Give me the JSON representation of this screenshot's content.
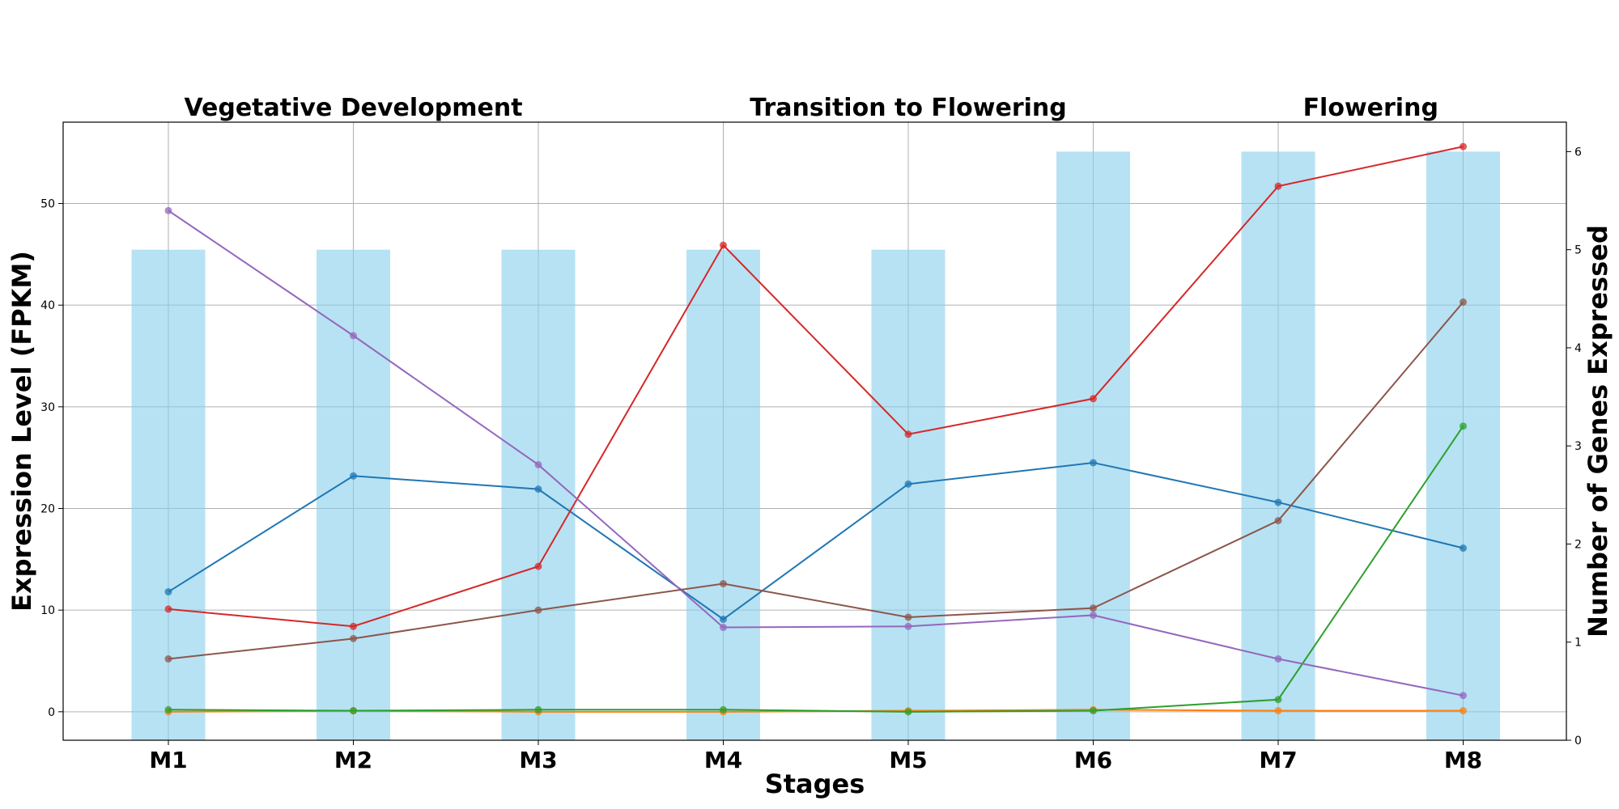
{
  "chart_data": {
    "type": "line",
    "categories": [
      "M1",
      "M2",
      "M3",
      "M4",
      "M5",
      "M6",
      "M7",
      "M8"
    ],
    "xlabel": "Stages",
    "ylabel": "Expression Level (FPKM)",
    "y2label": "Number of Genes Expressed",
    "ylim": [
      -2.8,
      58
    ],
    "y2lim": [
      0,
      6.3
    ],
    "yticks": [
      "0",
      "10",
      "20",
      "30",
      "40",
      "50"
    ],
    "y2ticks": [
      "0",
      "1",
      "2",
      "3",
      "4",
      "5",
      "6"
    ],
    "grid": true,
    "phases": [
      {
        "label": "Vegetative Development",
        "center_index": 1.0
      },
      {
        "label": "Transition to Flowering",
        "center_index": 4.0
      },
      {
        "label": "Flowering",
        "center_index": 6.5
      }
    ],
    "bars": {
      "color": "#87ceeb",
      "axis": "right",
      "values": [
        5,
        5,
        5,
        5,
        5,
        6,
        6,
        6
      ]
    },
    "series": [
      {
        "color": "#1f77b4",
        "values": [
          11.8,
          23.2,
          21.9,
          9.1,
          22.4,
          24.5,
          20.6,
          16.1
        ]
      },
      {
        "color": "#ff7f0e",
        "values": [
          0.0,
          0.1,
          0.0,
          0.0,
          0.1,
          0.2,
          0.1,
          0.1
        ]
      },
      {
        "color": "#2ca02c",
        "values": [
          0.2,
          0.1,
          0.2,
          0.2,
          0.0,
          0.1,
          1.2,
          28.1
        ]
      },
      {
        "color": "#d62728",
        "values": [
          10.1,
          8.4,
          14.3,
          45.9,
          27.3,
          30.8,
          51.7,
          55.6
        ]
      },
      {
        "color": "#9467bd",
        "values": [
          49.3,
          37.0,
          24.3,
          8.3,
          8.4,
          9.5,
          5.2,
          1.6
        ]
      },
      {
        "color": "#8c564b",
        "values": [
          5.2,
          7.2,
          10.0,
          12.6,
          9.3,
          10.2,
          18.8,
          40.3
        ]
      }
    ]
  }
}
